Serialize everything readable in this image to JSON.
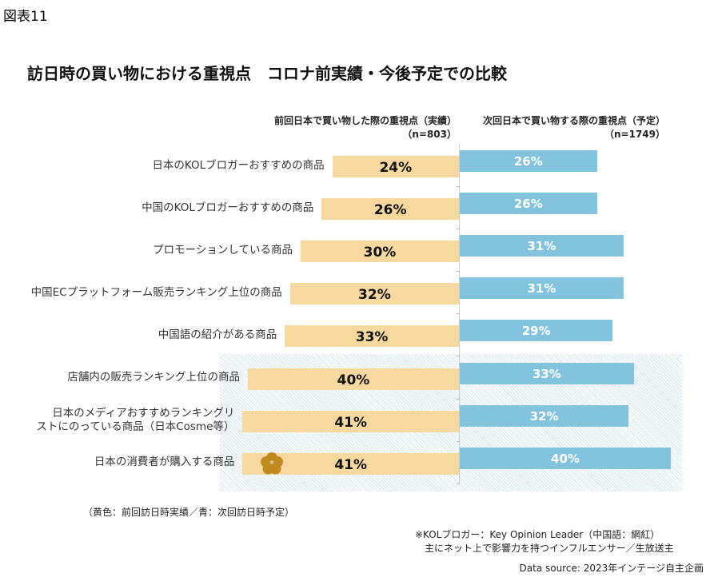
{
  "figure_label": "図表11",
  "chart_data": {
    "type": "bar",
    "orientation": "horizontal-butterfly",
    "title": "訪日時の買い物における重視点　コロナ前実績・今後予定での比較",
    "categories": [
      "日本のKOLブロガーおすすめの商品",
      "中国のKOLブロガーおすすめの商品",
      "プロモーションしている商品",
      "中国ECプラットフォーム販売ランキング上位の商品",
      "中国語の紹介がある商品",
      "店舗内の販売ランキング上位の商品",
      "日本のメディアおすすめランキングリストにのっている商品（日本Cosme等）",
      "日本の消費者が購入する商品"
    ],
    "category_lines": [
      [
        "日本のKOLブロガーおすすめの商品"
      ],
      [
        "中国のKOLブロガーおすすめの商品"
      ],
      [
        "プロモーションしている商品"
      ],
      [
        "中国ECプラットフォーム販売ランキング上位の商品"
      ],
      [
        "中国語の紹介がある商品"
      ],
      [
        "店舗内の販売ランキング上位の商品"
      ],
      [
        "日本のメディアおすすめランキングリ",
        "ストにのっている商品（日本Cosme等）"
      ],
      [
        "日本の消費者が購入する商品"
      ]
    ],
    "series": [
      {
        "name": "前回日本で買い物した際の重視点（実績）",
        "n": "（n=803）",
        "color": "#f7d9a0",
        "values": [
          24,
          26,
          30,
          32,
          33,
          40,
          41,
          41
        ],
        "labels": [
          "24%",
          "26%",
          "30%",
          "32%",
          "33%",
          "40%",
          "41%",
          "41%"
        ]
      },
      {
        "name": "次回日本で買い物する際の重視点（予定）",
        "n": "（n=1749）",
        "color": "#82c4dd",
        "values": [
          26,
          26,
          31,
          31,
          29,
          33,
          32,
          40
        ],
        "labels": [
          "26%",
          "26%",
          "31%",
          "31%",
          "29%",
          "33%",
          "32%",
          "40%"
        ]
      }
    ],
    "highlighted_categories": [
      5,
      6,
      7
    ],
    "units": "%"
  },
  "notes": {
    "legend": "（黄色：前回訪日時実績／青：次回訪日時予定）",
    "kol_line1": "※KOLブロガー：Key Opinion Leader（中国語：網紅）",
    "kol_line2": "主にネット上で影響力を持つインフルエンサー／生放送主",
    "source": "Data source: 2023年インテージ自主企画"
  }
}
